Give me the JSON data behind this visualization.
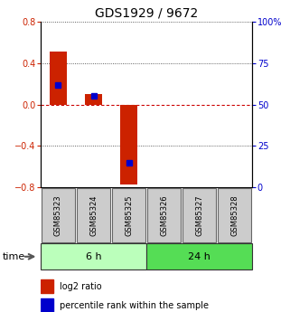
{
  "title": "GDS1929 / 9672",
  "samples": [
    "GSM85323",
    "GSM85324",
    "GSM85325",
    "GSM85326",
    "GSM85327",
    "GSM85328"
  ],
  "log2_ratio": [
    0.51,
    0.1,
    -0.77,
    0.0,
    0.0,
    0.0
  ],
  "percentile_rank": [
    62,
    55,
    15,
    0,
    0,
    0
  ],
  "has_log2": [
    true,
    true,
    true,
    false,
    false,
    false
  ],
  "has_pct": [
    true,
    true,
    true,
    false,
    false,
    false
  ],
  "ylim_left": [
    -0.8,
    0.8
  ],
  "ylim_right": [
    0,
    100
  ],
  "yticks_left": [
    -0.8,
    -0.4,
    0.0,
    0.4,
    0.8
  ],
  "yticks_right": [
    0,
    25,
    50,
    75,
    100
  ],
  "ytick_labels_right": [
    "0",
    "25",
    "50",
    "75",
    "100%"
  ],
  "hline_zero_color": "#cc0000",
  "hline_dotted_color": "#333333",
  "bar_color": "#cc2200",
  "pct_color": "#0000cc",
  "group_labels": [
    "6 h",
    "24 h"
  ],
  "group_ranges": [
    [
      0,
      3
    ],
    [
      3,
      6
    ]
  ],
  "group_colors_light": [
    "#bbffbb",
    "#55dd55"
  ],
  "time_label": "time",
  "legend_bar_label": "log2 ratio",
  "legend_pct_label": "percentile rank within the sample",
  "bg_color": "#ffffff"
}
